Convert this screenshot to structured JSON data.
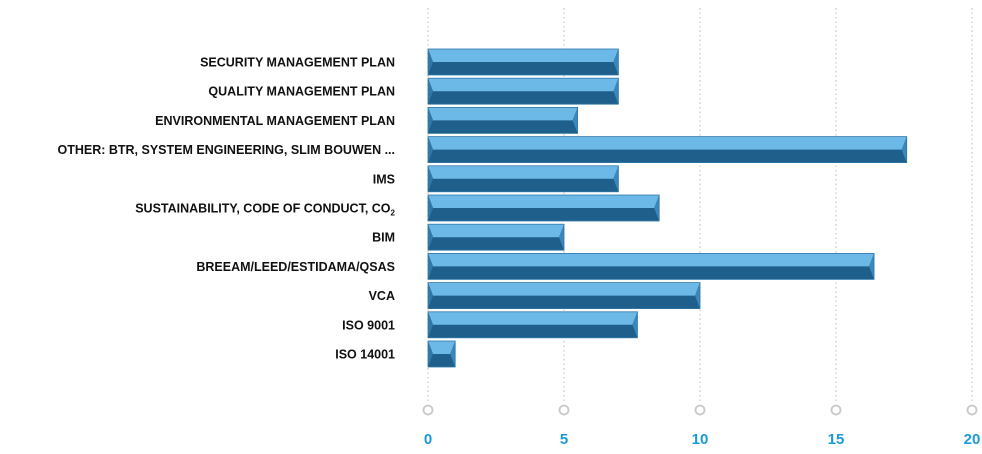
{
  "chart_data": {
    "type": "bar",
    "orientation": "horizontal",
    "categories": [
      "SECURITY MANAGEMENT PLAN",
      "QUALITY MANAGEMENT PLAN",
      "ENVIRONMENTAL MANAGEMENT PLAN",
      "OTHER: BTR, SYSTEM ENGINEERING, SLIM BOUWEN ...",
      "IMS",
      "SUSTAINABILITY, CODE OF CONDUCT, CO",
      "BIM",
      "BREEAM/LEED/ESTIDAMA/QSAS",
      "VCA",
      "ISO 9001",
      "ISO 14001"
    ],
    "category_subscripts": [
      "",
      "",
      "",
      "",
      "",
      "2",
      "",
      "",
      "",
      "",
      ""
    ],
    "values": [
      7,
      7,
      5.5,
      17.6,
      7,
      8.5,
      5,
      16.4,
      10,
      7.7,
      1
    ],
    "xlim": [
      0,
      20
    ],
    "xticks": [
      "0",
      "5",
      "10",
      "15",
      "20"
    ],
    "grid": "vertical-dotted",
    "title": "",
    "xlabel": "",
    "ylabel": "",
    "colors": {
      "bar_light": "#6cb8e6",
      "bar_dark": "#1f5f8c",
      "bar_edge": "#2f78aa",
      "bar_tip": "#3a87bb",
      "grid": "#c9c9c9",
      "tick_text": "#1a9ad9",
      "label_text": "#111111"
    }
  }
}
